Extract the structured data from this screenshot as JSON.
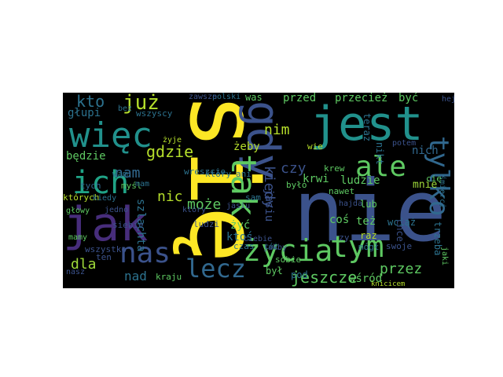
{
  "image": {
    "description_type": "word-cloud",
    "background_color": "#000000",
    "figure_background": "#ffffff",
    "palette": [
      "#fde725",
      "#5ec962",
      "#21918c",
      "#3b528b",
      "#440154"
    ]
  },
  "words": [
    {
      "text": "się",
      "color": "#fde725"
    },
    {
      "text": "nie",
      "color": "#3b528b"
    },
    {
      "text": "jest",
      "color": "#21918c"
    },
    {
      "text": "jak",
      "color": "#472d7b"
    },
    {
      "text": "więc",
      "color": "#21918c"
    },
    {
      "text": "gdy",
      "color": "#3b528b"
    },
    {
      "text": "życia",
      "color": "#5ec962"
    },
    {
      "text": "tym",
      "color": "#5ec962"
    },
    {
      "text": "ich",
      "color": "#20a386"
    },
    {
      "text": "ale",
      "color": "#5ec962"
    },
    {
      "text": "tak",
      "color": "#5ec962"
    },
    {
      "text": "nas",
      "color": "#3b528b"
    },
    {
      "text": "lecz",
      "color": "#31688e"
    },
    {
      "text": "tylko",
      "color": "#31688e"
    },
    {
      "text": "już",
      "color": "#b5de2b"
    },
    {
      "text": "kto",
      "color": "#2c728e"
    },
    {
      "text": "gdzie",
      "color": "#b5de2b"
    },
    {
      "text": "dla",
      "color": "#9fda3a"
    },
    {
      "text": "nad",
      "color": "#2c728e"
    },
    {
      "text": "jeszcze",
      "color": "#5ec962"
    },
    {
      "text": "przez",
      "color": "#5ec962"
    },
    {
      "text": "kiedy",
      "color": "#3b528b"
    },
    {
      "text": "czy",
      "color": "#3b528b"
    },
    {
      "text": "nam",
      "color": "#31688e"
    },
    {
      "text": "nic",
      "color": "#b5de2b"
    },
    {
      "text": "może",
      "color": "#5ec962"
    },
    {
      "text": "nim",
      "color": "#b5de2b"
    },
    {
      "text": "żeby",
      "color": "#b5de2b"
    },
    {
      "text": "ludzie",
      "color": "#5ec962"
    },
    {
      "text": "przed",
      "color": "#5ec962"
    },
    {
      "text": "przecież",
      "color": "#5ec962"
    },
    {
      "text": "być",
      "color": "#5ec962"
    },
    {
      "text": "nich",
      "color": "#31688e"
    },
    {
      "text": "mnie",
      "color": "#9fda3a"
    },
    {
      "text": "krwi",
      "color": "#5ec962"
    },
    {
      "text": "będzie",
      "color": "#5ec962"
    },
    {
      "text": "głupi",
      "color": "#2c728e"
    },
    {
      "text": "też",
      "color": "#5ec962"
    },
    {
      "text": "coś",
      "color": "#5ec962"
    },
    {
      "text": "lub",
      "color": "#5ec962"
    },
    {
      "text": "był",
      "color": "#5ec962"
    },
    {
      "text": "pod",
      "color": "#2c728e"
    },
    {
      "text": "wśród",
      "color": "#5ec962"
    },
    {
      "text": "żyć",
      "color": "#5ec962"
    },
    {
      "text": "ktoś",
      "color": "#2c728e"
    },
    {
      "text": "który",
      "color": "#2c728e"
    },
    {
      "text": "których",
      "color": "#b5de2b"
    },
    {
      "text": "wam",
      "color": "#2c728e"
    },
    {
      "text": "tych",
      "color": "#31688e"
    },
    {
      "text": "myśl",
      "color": "#5ec962"
    },
    {
      "text": "wreszcie",
      "color": "#2c728e"
    },
    {
      "text": "szlachta",
      "color": "#2c728e"
    },
    {
      "text": "siebie",
      "color": "#3b528b"
    },
    {
      "text": "ludzi",
      "color": "#3b528b"
    },
    {
      "text": "ten",
      "color": "#3b528b"
    },
    {
      "text": "kraju",
      "color": "#5ec962"
    },
    {
      "text": "ani",
      "color": "#2c728e"
    },
    {
      "text": "czas",
      "color": "#2c728e"
    },
    {
      "text": "sam",
      "color": "#2c728e"
    },
    {
      "text": "jasiu",
      "color": "#3b528b"
    },
    {
      "text": "przy",
      "color": "#3b528b"
    },
    {
      "text": "nikt",
      "color": "#2c728e"
    },
    {
      "text": "teraz",
      "color": "#2c728e"
    },
    {
      "text": "nawet",
      "color": "#5ec962"
    },
    {
      "text": "raz",
      "color": "#b5de2b"
    },
    {
      "text": "mógł",
      "color": "#2c728e"
    },
    {
      "text": "wciąż",
      "color": "#2c728e"
    },
    {
      "text": "trzeba",
      "color": "#2c728e"
    },
    {
      "text": "chce",
      "color": "#3b528b"
    },
    {
      "text": "swoje",
      "color": "#3b528b"
    },
    {
      "text": "było",
      "color": "#5ec962"
    },
    {
      "text": "krew",
      "color": "#5ec962"
    },
    {
      "text": "hajda",
      "color": "#3b528b"
    },
    {
      "text": "polski",
      "color": "#2c728e"
    },
    {
      "text": "was",
      "color": "#5ec962"
    },
    {
      "text": "wie",
      "color": "#b5de2b"
    },
    {
      "text": "bez",
      "color": "#2c728e"
    },
    {
      "text": "wszyscy",
      "color": "#2c728e"
    },
    {
      "text": "mam",
      "color": "#2c728e"
    },
    {
      "text": "ciebie",
      "color": "#3b528b"
    },
    {
      "text": "nasz",
      "color": "#3b528b"
    },
    {
      "text": "żyje",
      "color": "#b5de2b"
    },
    {
      "text": "jedno",
      "color": "#3b528b"
    },
    {
      "text": "jaki",
      "color": "#5ec962"
    },
    {
      "text": "śmierci",
      "color": "#2c728e"
    },
    {
      "text": "cię",
      "color": "#5ec962"
    },
    {
      "text": "hej",
      "color": "#3b528b"
    },
    {
      "text": "potem",
      "color": "#3b528b"
    },
    {
      "text": "knicicem",
      "color": "#b5de2b"
    },
    {
      "text": "cóż",
      "color": "#2c728e"
    },
    {
      "text": "kiedy",
      "color": "#2c728e"
    },
    {
      "text": "mamy",
      "color": "#5ec962"
    },
    {
      "text": "głowy",
      "color": "#5ec962"
    },
    {
      "text": "wszystko",
      "color": "#3b528b"
    },
    {
      "text": "jakby",
      "color": "#3b528b"
    },
    {
      "text": "który",
      "color": "#3b528b"
    },
    {
      "text": "sobie",
      "color": "#5ec962"
    },
    {
      "text": "zawsze",
      "color": "#3b528b"
    },
    {
      "text": "jasiu",
      "color": "#3b528b"
    }
  ]
}
